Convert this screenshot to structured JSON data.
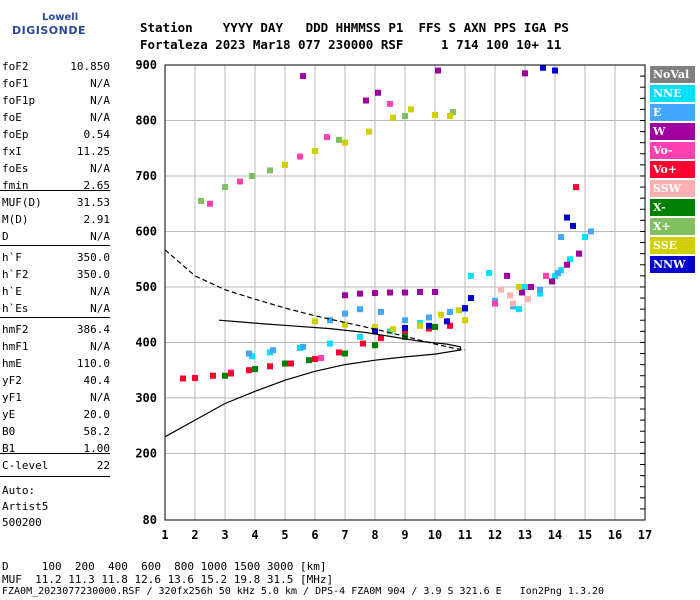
{
  "logo": {
    "top": "Lowell",
    "bottom": "DIGISONDE"
  },
  "header": {
    "line1": "Station    YYYY DAY   DDD HHMMSS P1  FFS S AXN PPS IGA PS",
    "line2": "Fortaleza 2023 Mar18 077 230000 RSF     1 714 100 10+ 11"
  },
  "parameters": {
    "group1": [
      {
        "name": "foF2",
        "value": "10.850"
      },
      {
        "name": "foF1",
        "value": "N/A"
      },
      {
        "name": "foF1p",
        "value": "N/A"
      },
      {
        "name": "foE",
        "value": "N/A"
      },
      {
        "name": "foEp",
        "value": "0.54"
      },
      {
        "name": "fxI",
        "value": "11.25"
      },
      {
        "name": "foEs",
        "value": "N/A"
      },
      {
        "name": "fmin",
        "value": "2.65"
      }
    ],
    "group2": [
      {
        "name": "MUF(D)",
        "value": "31.53"
      },
      {
        "name": "M(D)",
        "value": "2.91"
      },
      {
        "name": "D",
        "value": "N/A"
      }
    ],
    "group3": [
      {
        "name": "h`F",
        "value": "350.0"
      },
      {
        "name": "h`F2",
        "value": "350.0"
      },
      {
        "name": "h`E",
        "value": "N/A"
      },
      {
        "name": "h`Es",
        "value": "N/A"
      }
    ],
    "group4": [
      {
        "name": "hmF2",
        "value": "386.4"
      },
      {
        "name": "hmF1",
        "value": "N/A"
      },
      {
        "name": "hmE",
        "value": "110.0"
      },
      {
        "name": "yF2",
        "value": "40.4"
      },
      {
        "name": "yF1",
        "value": "N/A"
      },
      {
        "name": "yE",
        "value": "20.0"
      },
      {
        "name": "B0",
        "value": "58.2"
      },
      {
        "name": "B1",
        "value": "1.00"
      }
    ],
    "group5": [
      {
        "name": "C-level",
        "value": "22"
      }
    ]
  },
  "autoscaling": {
    "line1": "Auto:",
    "line2": "Artist5",
    "line3": "500200"
  },
  "legend": [
    {
      "label": "NoVal",
      "color": "#808080"
    },
    {
      "label": "NNE",
      "color": "#00e0ff"
    },
    {
      "label": "E",
      "color": "#40a8ff"
    },
    {
      "label": "W",
      "color": "#a000a0"
    },
    {
      "label": "Vo-",
      "color": "#ff40b0"
    },
    {
      "label": "Vo+",
      "color": "#ff0030"
    },
    {
      "label": "SSW",
      "color": "#ffb0b0"
    },
    {
      "label": "X-",
      "color": "#008000"
    },
    {
      "label": "X+",
      "color": "#80c060"
    },
    {
      "label": "SSE",
      "color": "#d0d000"
    },
    {
      "label": "NNW",
      "color": "#0000d0"
    }
  ],
  "bottom": {
    "row1": "D     100  200  400  600  800 1000 1500 3000 [km]",
    "row2": "MUF  11.2 11.3 11.8 12.6 13.6 15.2 19.8 31.5 [MHz]",
    "row3": "FZA0M_2023077230000.RSF / 320fx256h 50 kHz 5.0 km / DPS-4 FZA0M 904 / 3.9 S 321.6 E   Ion2Png 1.3.20"
  },
  "chart_data": {
    "type": "scatter",
    "xlim": [
      1,
      17
    ],
    "ylim": [
      80,
      900
    ],
    "x_ticks": [
      1,
      2,
      3,
      4,
      5,
      6,
      7,
      8,
      9,
      10,
      11,
      12,
      13,
      14,
      15,
      16,
      17
    ],
    "y_ticks": [
      80,
      200,
      300,
      400,
      500,
      600,
      700,
      800,
      900
    ],
    "grid": true,
    "legend_position": "right",
    "series": [
      {
        "legend_index": 1,
        "points": [
          [
            3.9,
            375
          ],
          [
            4.5,
            382
          ],
          [
            5.5,
            390
          ],
          [
            6.5,
            398
          ],
          [
            7.5,
            410
          ],
          [
            8.5,
            420
          ],
          [
            9.5,
            435
          ],
          [
            10.5,
            455
          ],
          [
            11.2,
            520
          ],
          [
            11.8,
            525
          ],
          [
            12.4,
            520
          ],
          [
            12.8,
            460
          ],
          [
            13.5,
            488
          ],
          [
            14.0,
            520
          ],
          [
            14.5,
            550
          ],
          [
            15.0,
            590
          ],
          [
            13.0,
            500
          ],
          [
            14.2,
            530
          ]
        ]
      },
      {
        "legend_index": 2,
        "points": [
          [
            3.8,
            380
          ],
          [
            4.6,
            386
          ],
          [
            5.6,
            392
          ],
          [
            6.5,
            440
          ],
          [
            7.0,
            452
          ],
          [
            7.5,
            460
          ],
          [
            8.2,
            455
          ],
          [
            9.0,
            440
          ],
          [
            9.8,
            445
          ],
          [
            10.5,
            455
          ],
          [
            11.0,
            460
          ],
          [
            12.0,
            475
          ],
          [
            12.6,
            465
          ],
          [
            13.5,
            495
          ],
          [
            14.1,
            525
          ],
          [
            14.8,
            560
          ],
          [
            15.2,
            600
          ],
          [
            14.2,
            590
          ]
        ]
      },
      {
        "legend_index": 3,
        "points": [
          [
            7.0,
            485
          ],
          [
            7.5,
            488
          ],
          [
            8.0,
            489
          ],
          [
            8.5,
            490
          ],
          [
            9.0,
            490
          ],
          [
            9.5,
            491
          ],
          [
            10.0,
            491
          ],
          [
            12.4,
            520
          ],
          [
            12.9,
            490
          ],
          [
            13.2,
            500
          ],
          [
            13.9,
            510
          ],
          [
            14.4,
            540
          ],
          [
            14.8,
            560
          ],
          [
            5.6,
            880
          ],
          [
            7.7,
            836
          ],
          [
            8.1,
            850
          ],
          [
            10.1,
            890
          ],
          [
            13.0,
            885
          ]
        ]
      },
      {
        "legend_index": 4,
        "points": [
          [
            2.5,
            650
          ],
          [
            3.5,
            690
          ],
          [
            5.5,
            735
          ],
          [
            6.4,
            770
          ],
          [
            8.5,
            830
          ],
          [
            12.0,
            470
          ],
          [
            13.7,
            520
          ],
          [
            3.2,
            346
          ],
          [
            6.2,
            372
          ]
        ]
      },
      {
        "legend_index": 5,
        "points": [
          [
            1.6,
            335
          ],
          [
            2.0,
            336
          ],
          [
            2.6,
            340
          ],
          [
            3.2,
            344
          ],
          [
            3.8,
            350
          ],
          [
            4.5,
            357
          ],
          [
            5.2,
            362
          ],
          [
            6.0,
            370
          ],
          [
            6.8,
            382
          ],
          [
            7.6,
            398
          ],
          [
            8.2,
            408
          ],
          [
            9.0,
            418
          ],
          [
            9.8,
            425
          ],
          [
            10.5,
            430
          ],
          [
            14.7,
            680
          ]
        ]
      },
      {
        "legend_index": 6,
        "points": [
          [
            12.2,
            495
          ],
          [
            12.5,
            485
          ],
          [
            12.6,
            470
          ],
          [
            13.1,
            478
          ]
        ]
      },
      {
        "legend_index": 7,
        "points": [
          [
            3.0,
            340
          ],
          [
            4.0,
            352
          ],
          [
            5.0,
            362
          ],
          [
            5.8,
            368
          ],
          [
            7.0,
            380
          ],
          [
            8.0,
            395
          ],
          [
            9.0,
            410
          ],
          [
            10.0,
            428
          ]
        ]
      },
      {
        "legend_index": 8,
        "points": [
          [
            2.2,
            655
          ],
          [
            3.0,
            680
          ],
          [
            3.9,
            700
          ],
          [
            4.5,
            710
          ],
          [
            6.8,
            765
          ],
          [
            9.0,
            808
          ],
          [
            10.6,
            815
          ]
        ]
      },
      {
        "legend_index": 9,
        "points": [
          [
            6.0,
            438
          ],
          [
            7.0,
            432
          ],
          [
            8.0,
            428
          ],
          [
            8.6,
            424
          ],
          [
            9.5,
            430
          ],
          [
            10.2,
            450
          ],
          [
            10.8,
            458
          ],
          [
            11.0,
            440
          ],
          [
            5.0,
            720
          ],
          [
            6.0,
            745
          ],
          [
            7.0,
            760
          ],
          [
            7.8,
            780
          ],
          [
            8.6,
            805
          ],
          [
            9.2,
            820
          ],
          [
            10.0,
            810
          ],
          [
            10.5,
            808
          ],
          [
            12.8,
            500
          ]
        ]
      },
      {
        "legend_index": 10,
        "points": [
          [
            8.0,
            420
          ],
          [
            9.0,
            426
          ],
          [
            9.8,
            430
          ],
          [
            10.4,
            438
          ],
          [
            11.0,
            462
          ],
          [
            11.2,
            480
          ],
          [
            14.4,
            625
          ],
          [
            14.6,
            610
          ],
          [
            13.6,
            895
          ],
          [
            14.0,
            890
          ]
        ]
      }
    ],
    "profile_solid": [
      [
        1,
        230
      ],
      [
        2,
        260
      ],
      [
        3,
        290
      ],
      [
        4,
        312
      ],
      [
        5,
        332
      ],
      [
        6,
        348
      ],
      [
        7,
        360
      ],
      [
        8,
        368
      ],
      [
        9,
        374
      ],
      [
        10,
        379
      ],
      [
        10.85,
        386.4
      ],
      [
        10.85,
        392
      ],
      [
        10.4,
        397
      ],
      [
        9.5,
        402
      ],
      [
        8.6,
        410
      ],
      [
        7.7,
        418
      ],
      [
        6.5,
        425
      ],
      [
        5.2,
        430
      ],
      [
        4.2,
        434
      ],
      [
        3.5,
        437
      ],
      [
        2.8,
        440
      ]
    ],
    "profile_dashed": [
      [
        1,
        567
      ],
      [
        2,
        520
      ],
      [
        3,
        495
      ],
      [
        4,
        478
      ],
      [
        5,
        462
      ],
      [
        6,
        448
      ],
      [
        7,
        436
      ],
      [
        8,
        424
      ],
      [
        9,
        411
      ],
      [
        10,
        397
      ],
      [
        10.6,
        390
      ],
      [
        11.0,
        386
      ]
    ]
  }
}
